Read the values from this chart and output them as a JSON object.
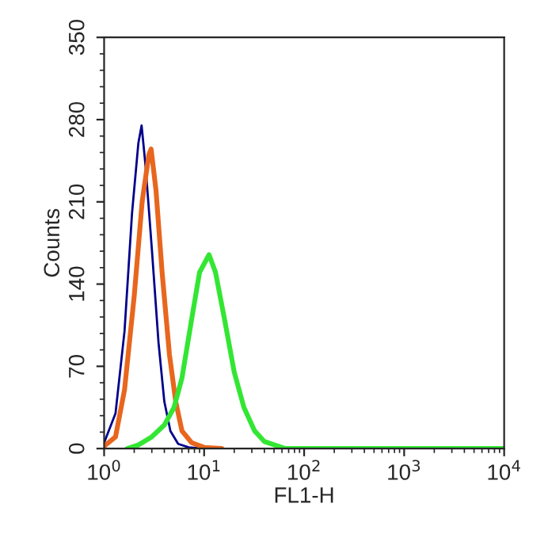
{
  "chart_data": {
    "type": "line",
    "xlabel": "FL1-H",
    "ylabel": "Counts",
    "log": "x",
    "grid": false,
    "legend": false,
    "marker": "none",
    "line_style": "solid",
    "xlim": [
      1,
      10000
    ],
    "xticks": [
      {
        "value": 1,
        "label": "10$^{0}$"
      },
      {
        "value": 10,
        "label": "10$^{1}$"
      },
      {
        "value": 100,
        "label": "10$^{2}$"
      },
      {
        "value": 1000,
        "label": "10$^{3}$"
      },
      {
        "value": 10000,
        "label": "10$^{4}$"
      }
    ],
    "ylim": [
      0,
      350
    ],
    "yticks": [
      0,
      70,
      140,
      210,
      280,
      350
    ],
    "series": [
      {
        "color": "#00008b",
        "x": [
          1,
          1.3,
          1.6,
          1.9,
          2.2,
          2.37,
          2.6,
          3.0,
          3.5,
          4.0,
          4.6,
          5.5,
          7,
          10,
          14
        ],
        "values": [
          5,
          30,
          100,
          200,
          260,
          275,
          240,
          170,
          90,
          40,
          15,
          4,
          1,
          0,
          0
        ]
      },
      {
        "color": "#e8661e",
        "x": [
          1,
          1.3,
          1.6,
          2.0,
          2.4,
          2.8,
          2.95,
          3.3,
          3.8,
          4.5,
          5.2,
          6,
          7.5,
          10,
          15
        ],
        "values": [
          2,
          10,
          50,
          130,
          210,
          250,
          255,
          220,
          150,
          80,
          40,
          15,
          5,
          1,
          0
        ]
      },
      {
        "color": "#33e633",
        "x": [
          1.7,
          2.2,
          3,
          4,
          5,
          6,
          7.5,
          9,
          11.2,
          13,
          16,
          20,
          25,
          32,
          40,
          55,
          65,
          10000
        ],
        "values": [
          0,
          3,
          10,
          20,
          35,
          60,
          110,
          150,
          165,
          150,
          110,
          65,
          35,
          15,
          6,
          2,
          0,
          0
        ]
      }
    ]
  }
}
